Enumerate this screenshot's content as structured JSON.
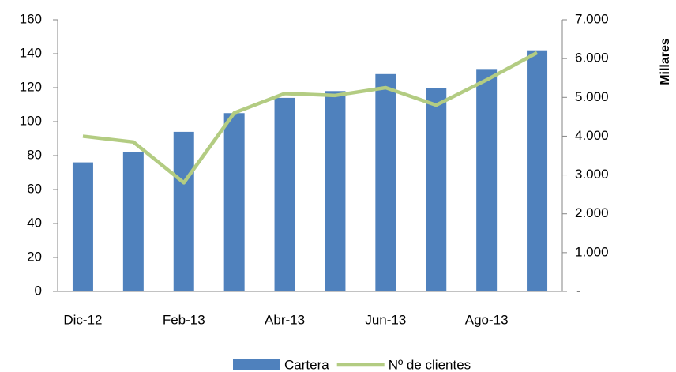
{
  "chart_data": {
    "type": "bar-line",
    "categories": [
      "Dic-12",
      null,
      "Feb-13",
      null,
      "Abr-13",
      null,
      "Jun-13",
      null,
      "Ago-13",
      null
    ],
    "series": [
      {
        "name": "Cartera",
        "type": "bar",
        "color": "#4f81bd",
        "values": [
          76,
          82,
          94,
          105,
          114,
          118,
          128,
          120,
          131,
          142
        ]
      },
      {
        "name": "Nº de clientes",
        "type": "line",
        "axis": "y2",
        "color": "#b3cc82",
        "values": [
          4000,
          3850,
          2800,
          4600,
          5100,
          5050,
          5250,
          4800,
          5450,
          6150
        ]
      }
    ],
    "ylim": [
      0,
      160
    ],
    "yticks": [
      0,
      20,
      40,
      60,
      80,
      100,
      120,
      140,
      160
    ],
    "y2lim": [
      0,
      7000
    ],
    "y2ticks": [
      {
        "value": 0,
        "label": "-"
      },
      {
        "value": 1000,
        "label": "1.000"
      },
      {
        "value": 2000,
        "label": "2.000"
      },
      {
        "value": 3000,
        "label": "3.000"
      },
      {
        "value": 4000,
        "label": "4.000"
      },
      {
        "value": 5000,
        "label": "5.000"
      },
      {
        "value": 6000,
        "label": "6.000"
      },
      {
        "value": 7000,
        "label": "7.000"
      }
    ],
    "y2label": "Millares",
    "legend": "bottom"
  }
}
